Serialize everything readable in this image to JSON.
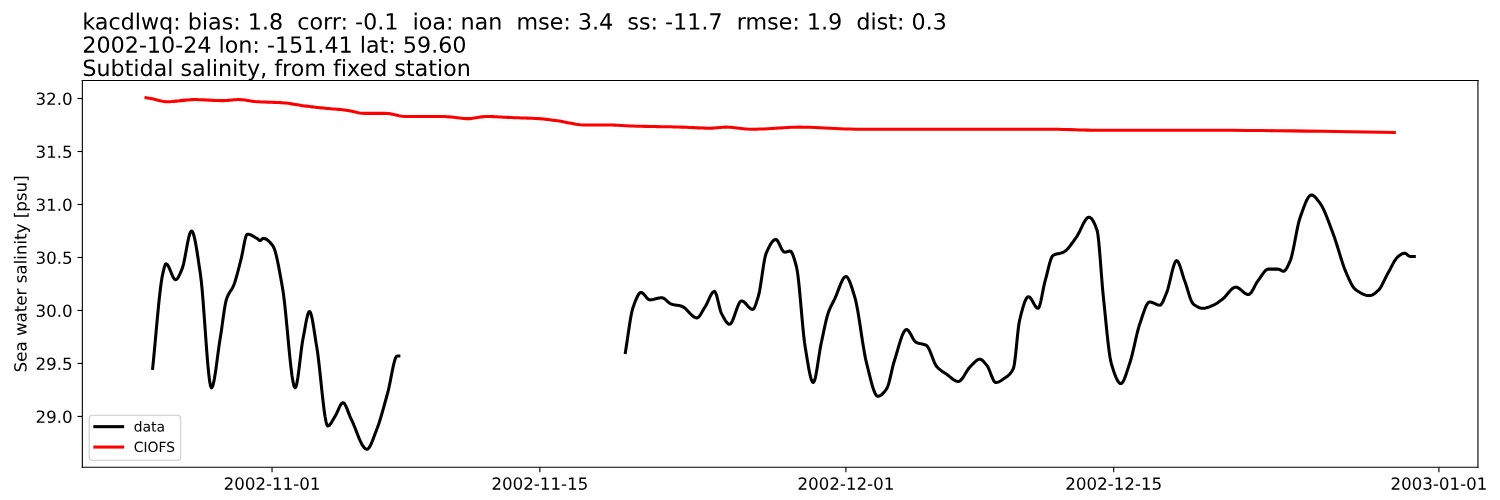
{
  "chart_data": {
    "type": "line",
    "title": "kacdlwq: bias: 1.8  corr: -0.1  ioa: nan  mse: 3.4  ss: -11.7  rmse: 1.9  dist: 0.3\n2002-10-24 lon: -151.41 lat: 59.60\nSubtidal salinity, from fixed station",
    "ylabel": "Sea water salinity [psu]",
    "xlim": [
      "2002-10-22T02:00",
      "2003-01-03T01:00"
    ],
    "xticks": [
      "2002-11-01",
      "2002-11-15",
      "2002-12-01",
      "2002-12-15",
      "2003-01-01"
    ],
    "ylim": [
      28.52,
      32.17
    ],
    "yticks": [
      {
        "value": 29.0,
        "label": "29.0"
      },
      {
        "value": 29.5,
        "label": "29.5"
      },
      {
        "value": 30.0,
        "label": "30.0"
      },
      {
        "value": 30.5,
        "label": "30.5"
      },
      {
        "value": 31.0,
        "label": "31.0"
      },
      {
        "value": 31.5,
        "label": "31.5"
      },
      {
        "value": 32.0,
        "label": "32.0"
      }
    ],
    "grid": false,
    "legend": "bottom left",
    "marker": "none",
    "line_style": "solid",
    "series": [
      {
        "name": "data",
        "color": "#000000",
        "x": [
          "2002-10-25T18:00",
          "2002-10-26T07:00",
          "2002-10-26T11:00",
          "2002-10-26T23:00",
          "2002-10-27T07:00",
          "2002-10-27T19:00",
          "2002-10-28T06:00",
          "2002-10-28T20:00",
          "2002-10-29T07:00",
          "2002-10-29T15:00",
          "2002-10-30T00:00",
          "2002-10-30T09:00",
          "2002-10-30T17:00",
          "2002-10-31T05:00",
          "2002-10-31T09:00",
          "2002-10-31T13:00",
          "2002-11-01T01:00",
          "2002-11-01T13:00",
          "2002-11-02T05:00",
          "2002-11-02T15:00",
          "2002-11-02T23:00",
          "2002-11-03T08:00",
          "2002-11-03T22:00",
          "2002-11-04T07:00",
          "2002-11-04T17:00",
          "2002-11-05T03:00",
          "2002-11-05T23:00",
          "2002-11-06T11:00",
          "2002-11-07T01:00",
          "2002-11-07T13:00",
          "2002-11-07T17:00",
          "2002-11-13T00:00",
          "2002-11-19T11:00",
          "2002-11-19T21:00",
          "2002-11-20T07:00",
          "2002-11-20T18:00",
          "2002-11-21T09:00",
          "2002-11-21T21:00",
          "2002-11-22T10:00",
          "2002-11-23T05:00",
          "2002-11-23T15:00",
          "2002-11-24T03:00",
          "2002-11-24T12:00",
          "2002-11-24T22:00",
          "2002-11-25T13:00",
          "2002-11-26T03:00",
          "2002-11-26T10:00",
          "2002-11-26T20:00",
          "2002-11-27T08:00",
          "2002-11-27T19:00",
          "2002-11-28T02:00",
          "2002-11-28T10:00",
          "2002-11-28T21:00",
          "2002-11-29T07:00",
          "2002-11-29T17:00",
          "2002-11-30T02:00",
          "2002-11-30T10:00",
          "2002-12-01T00:00",
          "2002-12-01T11:00",
          "2002-12-02T02:00",
          "2002-12-02T16:00",
          "2002-12-03T03:00",
          "2002-12-03T13:00",
          "2002-12-04T04:00",
          "2002-12-04T16:00",
          "2002-12-05T05:00",
          "2002-12-05T18:00",
          "2002-12-06T06:00",
          "2002-12-06T21:00",
          "2002-12-07T12:00",
          "2002-12-08T00:00",
          "2002-12-08T09:00",
          "2002-12-08T20:00",
          "2002-12-09T07:00",
          "2002-12-09T18:00",
          "2002-12-10T02:00",
          "2002-12-10T13:00",
          "2002-12-11T01:00",
          "2002-12-11T10:00",
          "2002-12-11T20:00",
          "2002-12-12T09:00",
          "2002-12-13T01:00",
          "2002-12-13T17:00",
          "2002-12-14T03:00",
          "2002-12-14T11:00",
          "2002-12-14T21:00",
          "2002-12-15T09:00",
          "2002-12-15T20:00",
          "2002-12-16T09:00",
          "2002-12-16T21:00",
          "2002-12-17T10:00",
          "2002-12-17T18:00",
          "2002-12-18T07:00",
          "2002-12-18T17:00",
          "2002-12-19T04:00",
          "2002-12-19T16:00",
          "2002-12-20T05:00",
          "2002-12-20T17:00",
          "2002-12-21T09:00",
          "2002-12-22T01:00",
          "2002-12-22T13:00",
          "2002-12-23T02:00",
          "2002-12-23T14:00",
          "2002-12-23T21:00",
          "2002-12-24T05:00",
          "2002-12-24T18:00",
          "2002-12-25T08:00",
          "2002-12-25T19:00",
          "2002-12-26T11:00",
          "2002-12-27T04:00",
          "2002-12-27T15:00",
          "2002-12-28T09:00",
          "2002-12-28T20:00",
          "2002-12-29T08:00",
          "2002-12-29T21:00",
          "2002-12-30T05:00",
          "2002-12-30T12:00",
          "2002-12-30T19:00"
        ],
        "values": [
          29.44,
          30.35,
          30.44,
          30.29,
          30.39,
          30.75,
          30.35,
          29.27,
          29.74,
          30.11,
          30.24,
          30.48,
          30.72,
          30.68,
          30.66,
          30.68,
          30.61,
          30.22,
          29.27,
          29.74,
          29.99,
          29.66,
          28.91,
          29.0,
          29.13,
          28.98,
          28.69,
          28.87,
          29.22,
          29.57,
          29.57,
          null,
          29.59,
          30.03,
          30.17,
          30.1,
          30.12,
          30.06,
          30.04,
          29.93,
          30.03,
          30.18,
          29.97,
          29.87,
          30.09,
          30.01,
          30.13,
          30.54,
          30.67,
          30.55,
          30.56,
          30.41,
          29.65,
          29.32,
          29.69,
          29.98,
          30.11,
          30.32,
          30.13,
          29.5,
          29.19,
          29.26,
          29.53,
          29.82,
          29.7,
          29.67,
          29.47,
          29.4,
          29.33,
          29.47,
          29.54,
          29.48,
          29.32,
          29.36,
          29.45,
          29.91,
          30.13,
          30.02,
          30.28,
          30.52,
          30.55,
          30.69,
          30.88,
          30.76,
          30.13,
          29.5,
          29.31,
          29.5,
          29.88,
          30.08,
          30.05,
          30.16,
          30.47,
          30.28,
          30.06,
          30.02,
          30.05,
          30.11,
          30.22,
          30.15,
          30.28,
          30.39,
          30.39,
          30.37,
          30.46,
          30.88,
          31.09,
          31.01,
          30.73,
          30.35,
          30.2,
          30.14,
          30.19,
          30.35,
          30.51,
          30.54,
          30.51,
          30.51
        ]
      },
      {
        "name": "CIOFS",
        "color": "#ff0000",
        "x": [
          "2002-10-25T08:00",
          "2002-10-25T16:00",
          "2002-10-26T12:00",
          "2002-10-27T23:00",
          "2002-10-29T10:00",
          "2002-10-30T06:00",
          "2002-10-31T05:00",
          "2002-11-01T13:00",
          "2002-11-02T17:00",
          "2002-11-03T16:00",
          "2002-11-04T21:00",
          "2002-11-05T20:00",
          "2002-11-06T22:00",
          "2002-11-08T00:00",
          "2002-11-08T23:00",
          "2002-11-09T22:00",
          "2002-11-11T06:00",
          "2002-11-12T05:00",
          "2002-11-13T13:00",
          "2002-11-14T23:00",
          "2002-11-15T22:00",
          "2002-11-17T09:00",
          "2002-11-18T14:00",
          "2002-11-19T21:00",
          "2002-11-22T11:00",
          "2002-11-23T21:00",
          "2002-11-24T18:00",
          "2002-11-26T02:00",
          "2002-11-28T14:00",
          "2002-12-01T18:00",
          "2002-12-05T13:00",
          "2002-12-11T16:00",
          "2002-12-14T07:00",
          "2002-12-20T09:00",
          "2002-12-29T18:00"
        ],
        "values": [
          32.01,
          32.0,
          31.97,
          31.99,
          31.98,
          31.99,
          31.97,
          31.96,
          31.93,
          31.91,
          31.89,
          31.86,
          31.86,
          31.83,
          31.83,
          31.83,
          31.81,
          31.83,
          31.82,
          31.81,
          31.79,
          31.75,
          31.75,
          31.74,
          31.73,
          31.72,
          31.73,
          31.71,
          31.73,
          31.71,
          31.71,
          31.71,
          31.7,
          31.7,
          31.68
        ]
      }
    ]
  }
}
